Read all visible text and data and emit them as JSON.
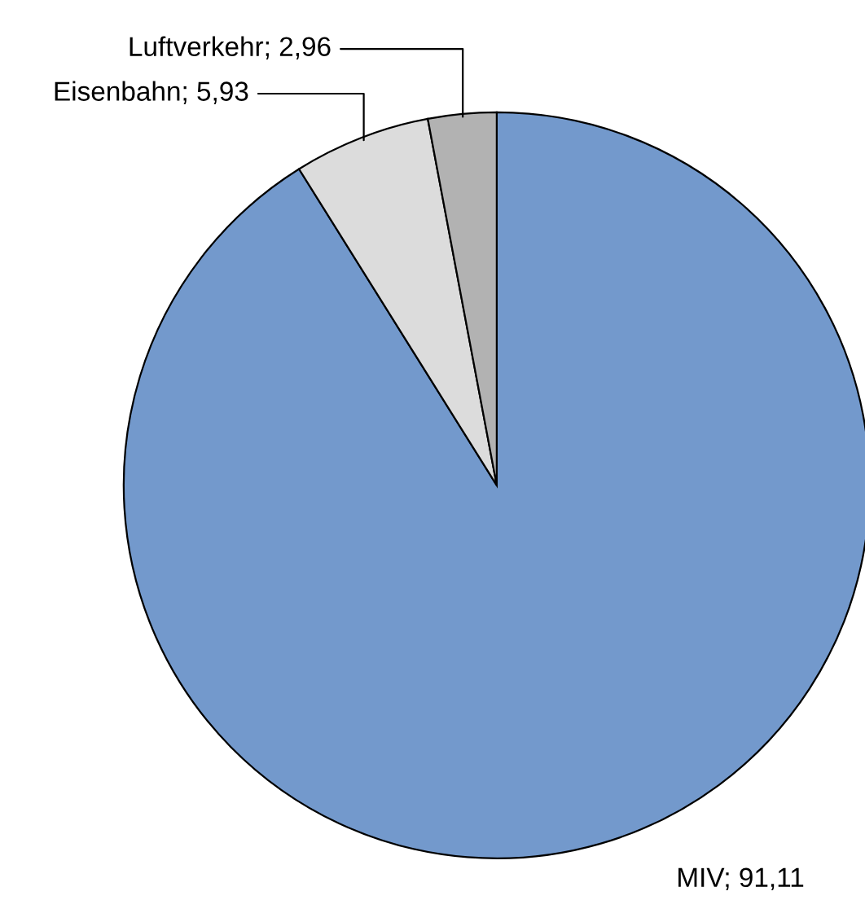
{
  "chart_data": {
    "type": "pie",
    "categories": [
      "MIV",
      "Eisenbahn",
      "Luftverkehr"
    ],
    "values": [
      91.11,
      5.93,
      2.96
    ],
    "value_labels": [
      "91,11",
      "5,93",
      "2,96"
    ],
    "colors": [
      "#7399cc",
      "#dcdcdc",
      "#b2b2b2"
    ],
    "legend": false
  }
}
